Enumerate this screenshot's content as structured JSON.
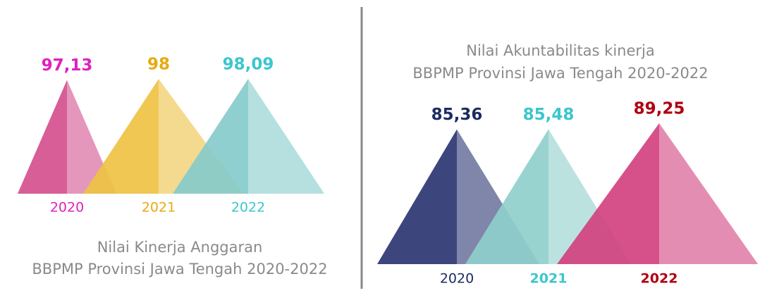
{
  "chart_data": [
    {
      "type": "pyramid",
      "title": [
        "Nilai Kinerja Anggaran",
        "BBPMP Provinsi Jawa Tengah 2020-2022"
      ],
      "categories": [
        "2020",
        "2021",
        "2022"
      ],
      "values": [
        97.13,
        98,
        98.09
      ],
      "value_labels": [
        "97,13",
        "98",
        "98,09"
      ],
      "colors": [
        "#d4508e",
        "#eec243",
        "#86cbcb"
      ],
      "label_colors": [
        "#e020c0",
        "#e8aa10",
        "#3cc6cc"
      ]
    },
    {
      "type": "pyramid",
      "title": [
        "Nilai Akuntabilitas kinerja",
        "BBPMP Provinsi Jawa Tengah 2020-2022"
      ],
      "categories": [
        "2020",
        "2021",
        "2022"
      ],
      "values": [
        85.36,
        85.48,
        89.25
      ],
      "value_labels": [
        "85,36",
        "85,48",
        "89,25"
      ],
      "colors": [
        "#2b3672",
        "#8fcfcc",
        "#d2427f"
      ],
      "label_colors": [
        "#1c2b63",
        "#3cc6cc",
        "#b00010"
      ]
    }
  ]
}
